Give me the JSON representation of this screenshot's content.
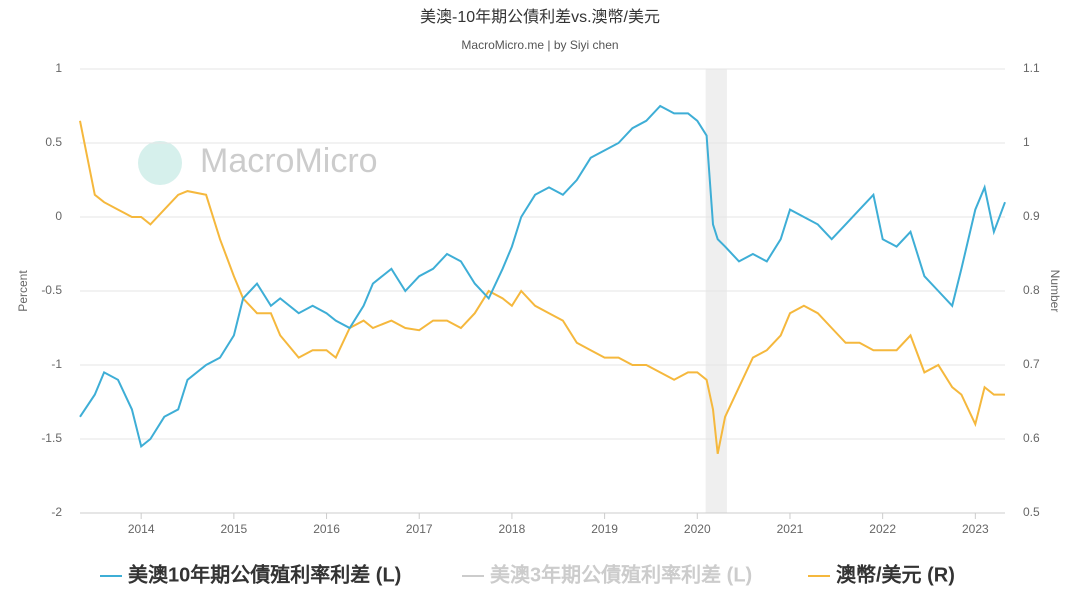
{
  "chart_data": {
    "type": "line",
    "title": "美澳-10年期公債利差vs.澳幣/美元",
    "subtitle": "MacroMicro.me | by Siyi chen",
    "watermark": "MacroMicro",
    "y_label": "Percent",
    "y2_label": "Number",
    "xlim": [
      2013.34,
      2023.32
    ],
    "xticks": [
      2014,
      2015,
      2016,
      2017,
      2018,
      2019,
      2020,
      2021,
      2022,
      2023
    ],
    "ylim": [
      -2,
      1
    ],
    "yticks": [
      1,
      0.5,
      0,
      -0.5,
      -1,
      -1.5,
      -2
    ],
    "y2lim": [
      0.5,
      1.1
    ],
    "y2ticks": [
      1.1,
      1,
      0.9,
      0.8,
      0.7,
      0.6,
      0.5
    ],
    "grid": true,
    "shaded_region": [
      2020.09,
      2020.32
    ],
    "x": [
      2013.34,
      2013.5,
      2013.6,
      2013.75,
      2013.9,
      2014.0,
      2014.1,
      2014.25,
      2014.4,
      2014.5,
      2014.7,
      2014.85,
      2015.0,
      2015.1,
      2015.25,
      2015.4,
      2015.5,
      2015.7,
      2015.85,
      2016.0,
      2016.1,
      2016.25,
      2016.4,
      2016.5,
      2016.7,
      2016.85,
      2017.0,
      2017.15,
      2017.3,
      2017.45,
      2017.6,
      2017.75,
      2017.9,
      2018.0,
      2018.1,
      2018.25,
      2018.4,
      2018.55,
      2018.7,
      2018.85,
      2019.0,
      2019.15,
      2019.3,
      2019.45,
      2019.6,
      2019.75,
      2019.9,
      2020.0,
      2020.1,
      2020.17,
      2020.22,
      2020.3,
      2020.45,
      2020.6,
      2020.75,
      2020.9,
      2021.0,
      2021.15,
      2021.3,
      2021.45,
      2021.6,
      2021.75,
      2021.9,
      2022.0,
      2022.15,
      2022.3,
      2022.45,
      2022.6,
      2022.75,
      2022.85,
      2023.0,
      2023.1,
      2023.2,
      2023.32
    ],
    "series": [
      {
        "name": "美澳10年期公債殖利率利差 (L)",
        "color": "#3eaed6",
        "values": [
          -1.35,
          -1.2,
          -1.05,
          -1.1,
          -1.3,
          -1.55,
          -1.5,
          -1.35,
          -1.3,
          -1.1,
          -1.0,
          -0.95,
          -0.8,
          -0.55,
          -0.45,
          -0.6,
          -0.55,
          -0.65,
          -0.6,
          -0.65,
          -0.7,
          -0.75,
          -0.6,
          -0.45,
          -0.35,
          -0.5,
          -0.4,
          -0.35,
          -0.25,
          -0.3,
          -0.45,
          -0.55,
          -0.35,
          -0.2,
          0.0,
          0.15,
          0.2,
          0.15,
          0.25,
          0.4,
          0.45,
          0.5,
          0.6,
          0.65,
          0.75,
          0.7,
          0.7,
          0.65,
          0.55,
          -0.05,
          -0.15,
          -0.2,
          -0.3,
          -0.25,
          -0.3,
          -0.15,
          0.05,
          0.0,
          -0.05,
          -0.15,
          -0.05,
          0.05,
          0.15,
          -0.15,
          -0.2,
          -0.1,
          -0.4,
          -0.5,
          -0.6,
          -0.35,
          0.05,
          0.2,
          -0.1,
          0.1
        ]
      },
      {
        "name": "澳幣/美元 (R)",
        "color": "#f5b83d",
        "axis": "y2",
        "values": [
          1.03,
          0.93,
          0.92,
          0.91,
          0.9,
          0.9,
          0.89,
          0.91,
          0.93,
          0.935,
          0.93,
          0.87,
          0.82,
          0.79,
          0.77,
          0.77,
          0.74,
          0.71,
          0.72,
          0.72,
          0.71,
          0.75,
          0.76,
          0.75,
          0.76,
          0.75,
          0.747,
          0.76,
          0.76,
          0.75,
          0.77,
          0.8,
          0.79,
          0.78,
          0.8,
          0.78,
          0.77,
          0.76,
          0.73,
          0.72,
          0.71,
          0.71,
          0.7,
          0.7,
          0.69,
          0.68,
          0.69,
          0.69,
          0.68,
          0.64,
          0.58,
          0.63,
          0.67,
          0.71,
          0.72,
          0.74,
          0.77,
          0.78,
          0.77,
          0.75,
          0.73,
          0.73,
          0.72,
          0.72,
          0.72,
          0.74,
          0.69,
          0.7,
          0.67,
          0.66,
          0.62,
          0.67,
          0.66,
          0.66
        ]
      }
    ],
    "hidden_series": [
      {
        "name": "美澳3年期公債殖利率利差 (L)",
        "color": "#cccccc"
      }
    ]
  }
}
